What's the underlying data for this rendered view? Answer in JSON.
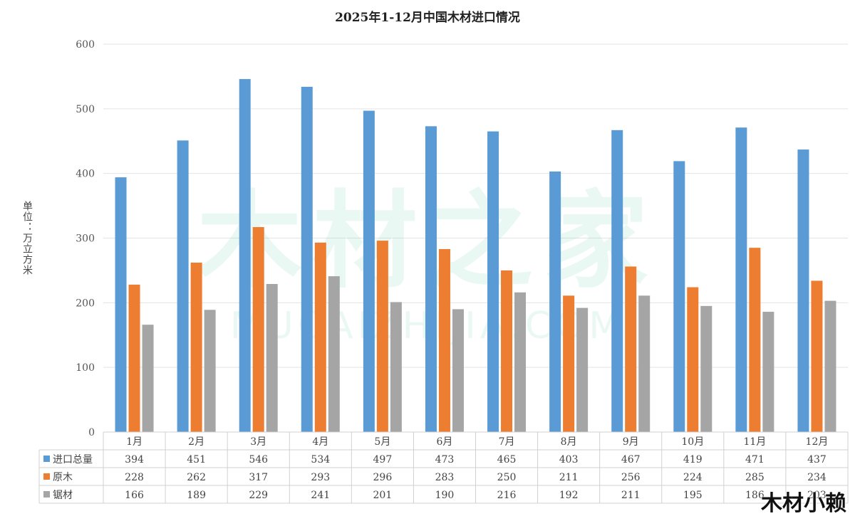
{
  "chart_data": {
    "type": "bar",
    "title": "2025年1-12月中国木材进口情况",
    "ylabel": "单位：万立方米",
    "xlabel": "",
    "ylim": [
      0,
      600
    ],
    "yticks": [
      0,
      100,
      200,
      300,
      400,
      500,
      600
    ],
    "grid": true,
    "legend": "table-bottom",
    "categories": [
      "1月",
      "2月",
      "3月",
      "4月",
      "5月",
      "6月",
      "7月",
      "8月",
      "9月",
      "10月",
      "11月",
      "12月"
    ],
    "series": [
      {
        "name": "进口总量",
        "color": "#5b9bd5",
        "values": [
          394,
          451,
          546,
          534,
          497,
          473,
          465,
          403,
          467,
          419,
          471,
          437
        ]
      },
      {
        "name": "原木",
        "color": "#ed7d31",
        "values": [
          228,
          262,
          317,
          293,
          296,
          283,
          250,
          211,
          256,
          224,
          285,
          234
        ]
      },
      {
        "name": "锯材",
        "color": "#a5a5a5",
        "values": [
          166,
          189,
          229,
          241,
          201,
          190,
          216,
          192,
          211,
          195,
          186,
          203
        ]
      }
    ]
  },
  "watermark": {
    "main": "木材之家",
    "sub": "MUCAIZHIJIA.COM",
    "corner": "木材小赖"
  }
}
